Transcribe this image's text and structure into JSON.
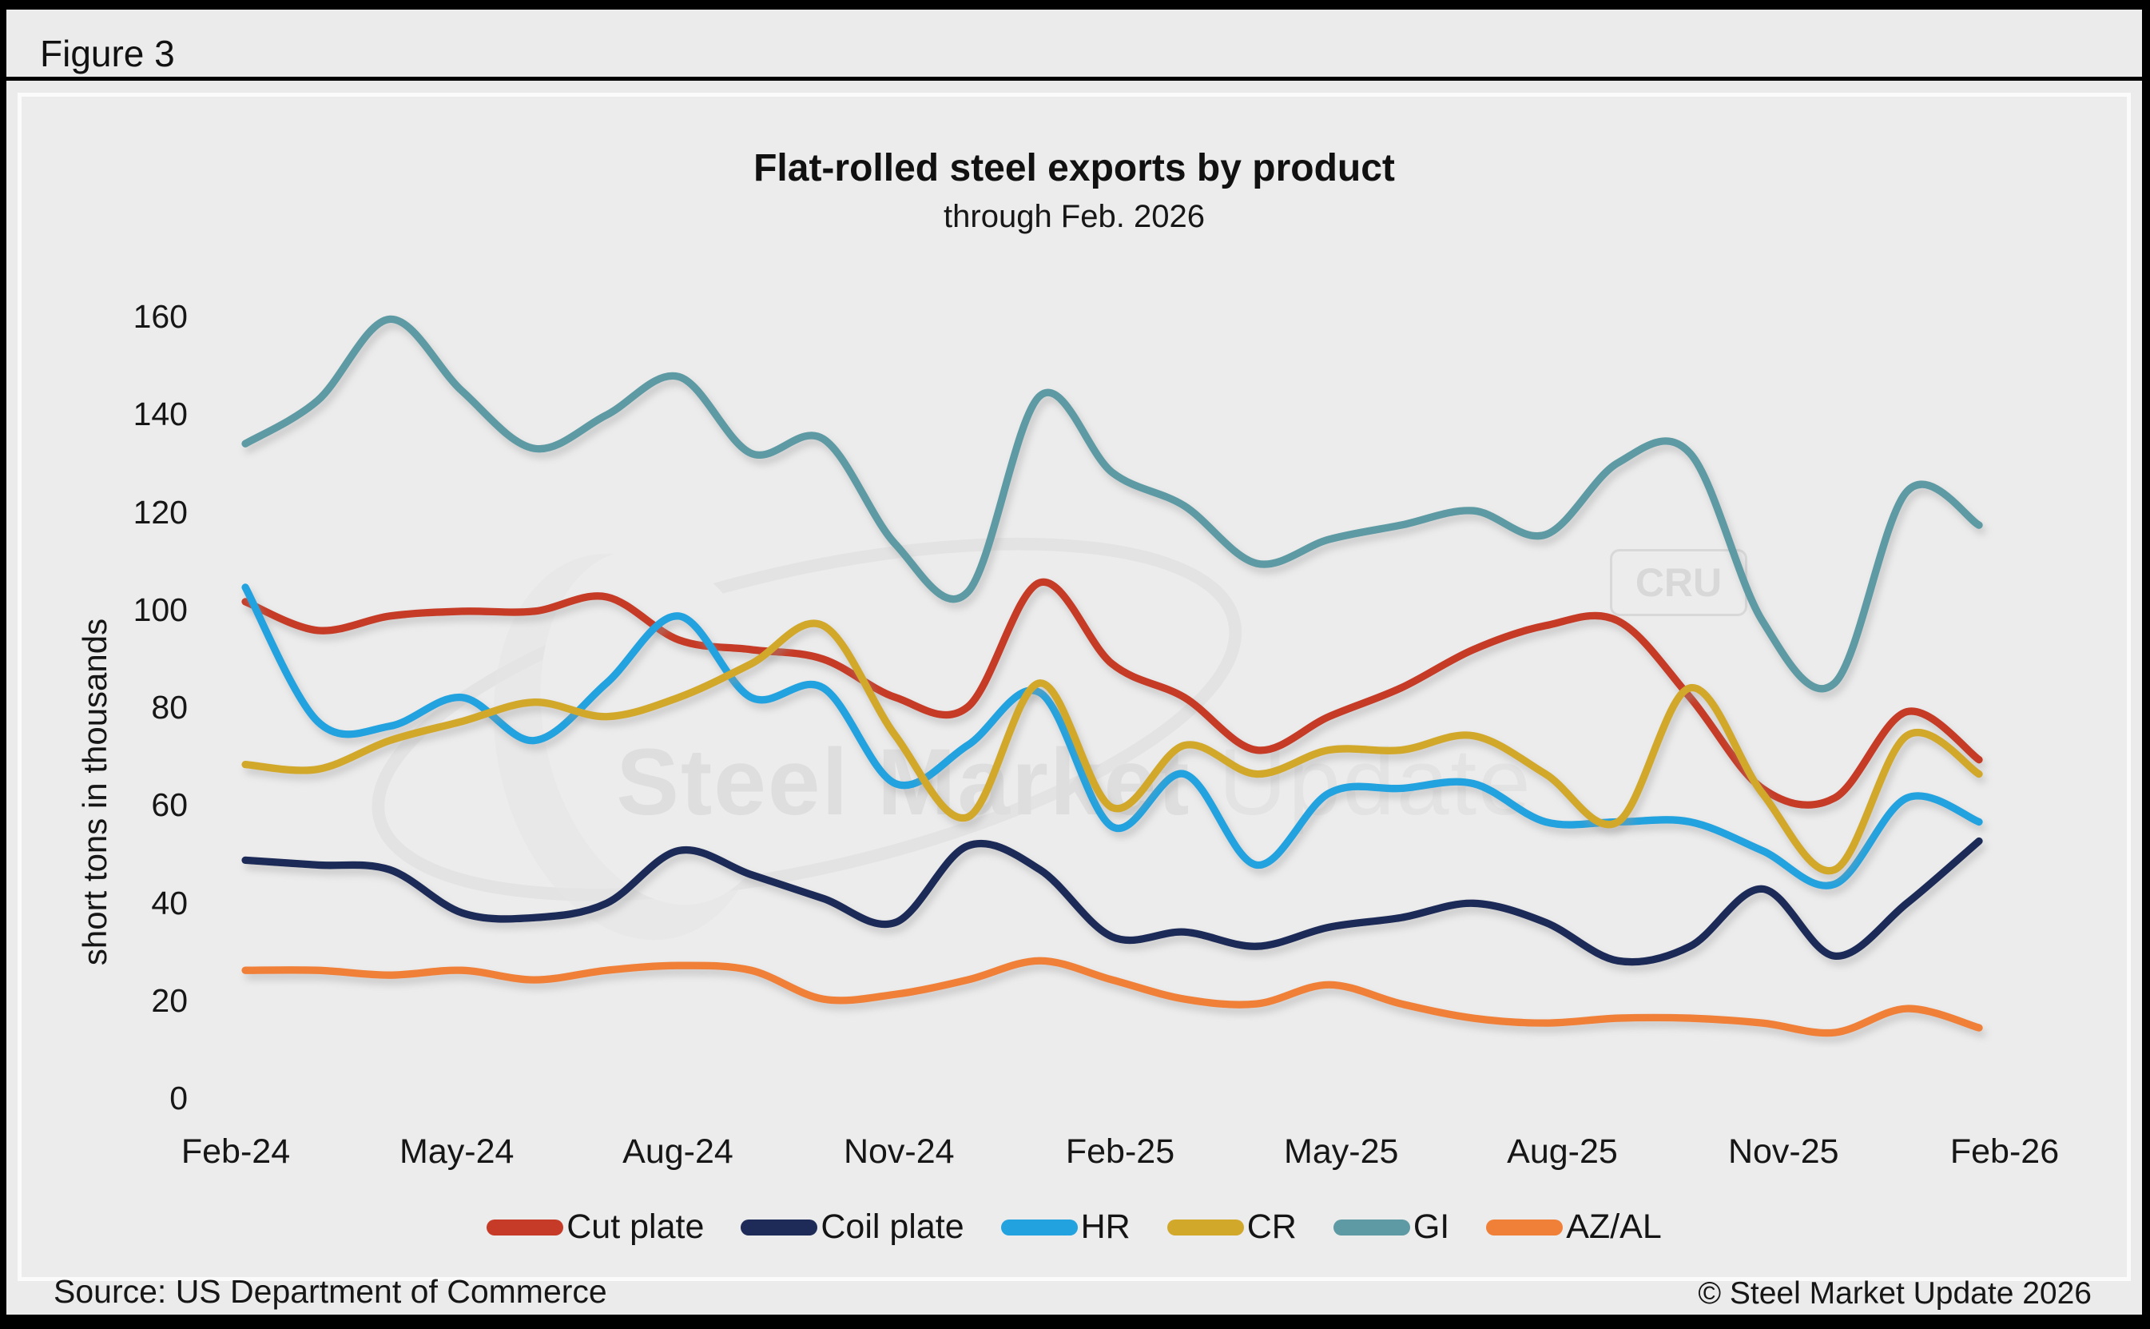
{
  "figure_label": "Figure 3",
  "header": {
    "title": "Flat-rolled steel exports by product",
    "subtitle": "through Feb. 2026"
  },
  "y_axis_title": "short tons in thousands",
  "footer": {
    "source": "Source: US Department of Commerce",
    "copyright": "© Steel Market Update 2026"
  },
  "watermark": {
    "bold_part": "Steel Market",
    "light_part": " Update",
    "badge": "CRU"
  },
  "chart_data": {
    "type": "line",
    "title": "Flat-rolled steel exports by product",
    "subtitle": "through Feb. 2026",
    "ylabel": "short tons in thousands",
    "ylim": [
      0,
      160
    ],
    "y_ticks": [
      0,
      20,
      40,
      60,
      80,
      100,
      120,
      140,
      160
    ],
    "grid": false,
    "legend_position": "bottom",
    "smooth": true,
    "x": [
      "Feb-24",
      "Mar-24",
      "Apr-24",
      "May-24",
      "Jun-24",
      "Jul-24",
      "Aug-24",
      "Sep-24",
      "Oct-24",
      "Nov-24",
      "Dec-24",
      "Jan-25",
      "Feb-25",
      "Mar-25",
      "Apr-25",
      "May-25",
      "Jun-25",
      "Jul-25",
      "Aug-25",
      "Sep-25",
      "Oct-25",
      "Nov-25",
      "Dec-25",
      "Jan-26",
      "Feb-26"
    ],
    "x_tick_indices": [
      0,
      3,
      6,
      9,
      12,
      15,
      18,
      21,
      24
    ],
    "series": [
      {
        "name": "Cut plate",
        "color": "#c63b27",
        "values": [
          100,
          94,
          97,
          98,
          98,
          101,
          92,
          90,
          88,
          80,
          78,
          104,
          87,
          80,
          69,
          76,
          82,
          90,
          95,
          96,
          80,
          61,
          59,
          77,
          67
        ]
      },
      {
        "name": "Coil plate",
        "color": "#1e2b58",
        "values": [
          46,
          45,
          44,
          35,
          34,
          37,
          48,
          43,
          38,
          33,
          49,
          44,
          30,
          31,
          28,
          32,
          34,
          37,
          33,
          25,
          28,
          40,
          26,
          37,
          50
        ]
      },
      {
        "name": "HR",
        "color": "#22a2de",
        "values": [
          103,
          75,
          74,
          80,
          71,
          83,
          97,
          80,
          82,
          62,
          70,
          81,
          53,
          64,
          45,
          60,
          61,
          62,
          54,
          54,
          54,
          48,
          41,
          59,
          54
        ]
      },
      {
        "name": "CR",
        "color": "#d2a82a",
        "values": [
          66,
          65,
          71,
          75,
          79,
          76,
          80,
          87,
          95,
          72,
          55,
          83,
          57,
          70,
          64,
          69,
          69,
          72,
          64,
          54,
          82,
          60,
          44,
          72,
          64
        ]
      },
      {
        "name": "GI",
        "color": "#5d9aa3",
        "values": [
          133,
          142,
          159,
          144,
          132,
          139,
          147,
          131,
          134,
          112,
          102,
          143,
          127,
          120,
          108,
          113,
          116,
          119,
          114,
          129,
          131,
          96,
          83,
          123,
          116
        ]
      },
      {
        "name": "AZ/AL",
        "color": "#f08038",
        "values": [
          23,
          23,
          22,
          23,
          21,
          23,
          24,
          23,
          17,
          18,
          21,
          25,
          21,
          17,
          16,
          20,
          16,
          13,
          12,
          13,
          13,
          12,
          10,
          15,
          11
        ]
      }
    ]
  }
}
